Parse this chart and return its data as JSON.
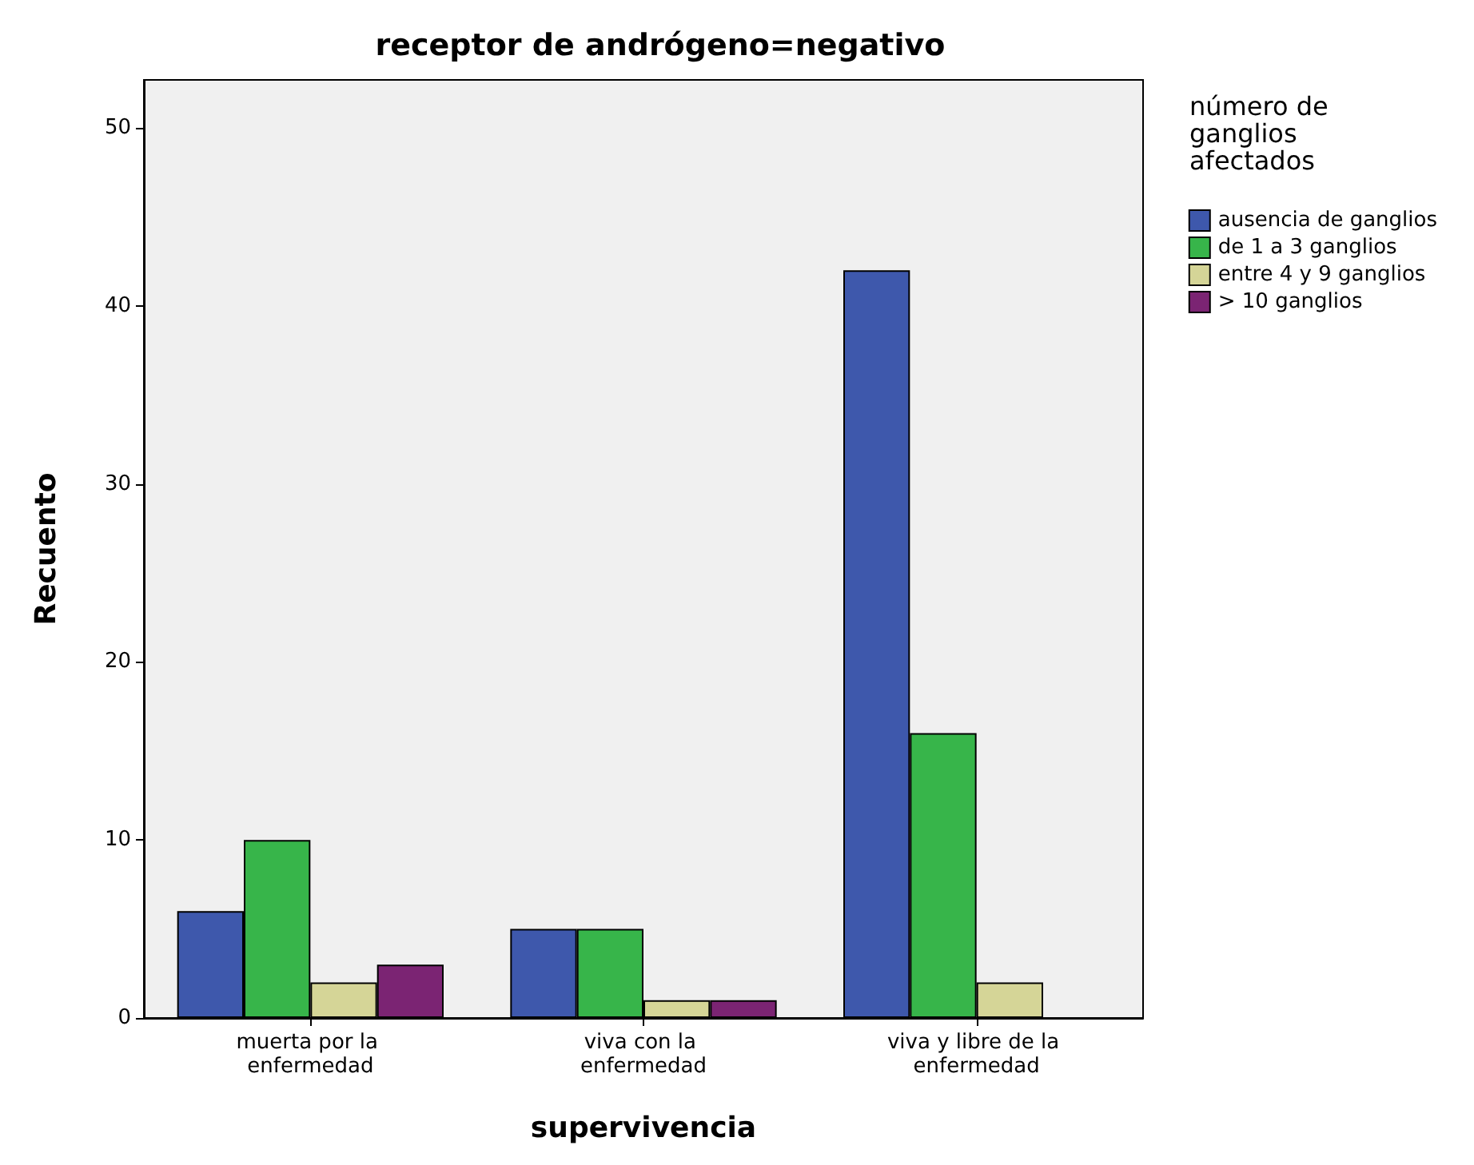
{
  "chart_data": {
    "type": "bar",
    "title": "receptor de andrógeno=negativo",
    "xlabel": "supervivencia",
    "ylabel": "Recuento",
    "legend_title": "número de ganglios afectados",
    "categories": [
      "muerta por la enfermedad",
      "viva con la enfermedad",
      "viva y libre de la enfermedad"
    ],
    "series": [
      {
        "name": "ausencia de ganglios",
        "color": "#3e58ac",
        "values": [
          6,
          5,
          42
        ]
      },
      {
        "name": "de 1 a 3 ganglios",
        "color": "#37b54a",
        "values": [
          10,
          5,
          16
        ]
      },
      {
        "name": "entre 4 y 9 ganglios",
        "color": "#d5d597",
        "values": [
          2,
          1,
          2
        ]
      },
      {
        "name": "> 10 ganglios",
        "color": "#7b2473",
        "values": [
          3,
          1,
          null
        ]
      }
    ],
    "ylim": [
      0,
      52.7
    ],
    "yticks": [
      0,
      10,
      20,
      30,
      40,
      50
    ],
    "grid": false,
    "legend": "top right"
  }
}
